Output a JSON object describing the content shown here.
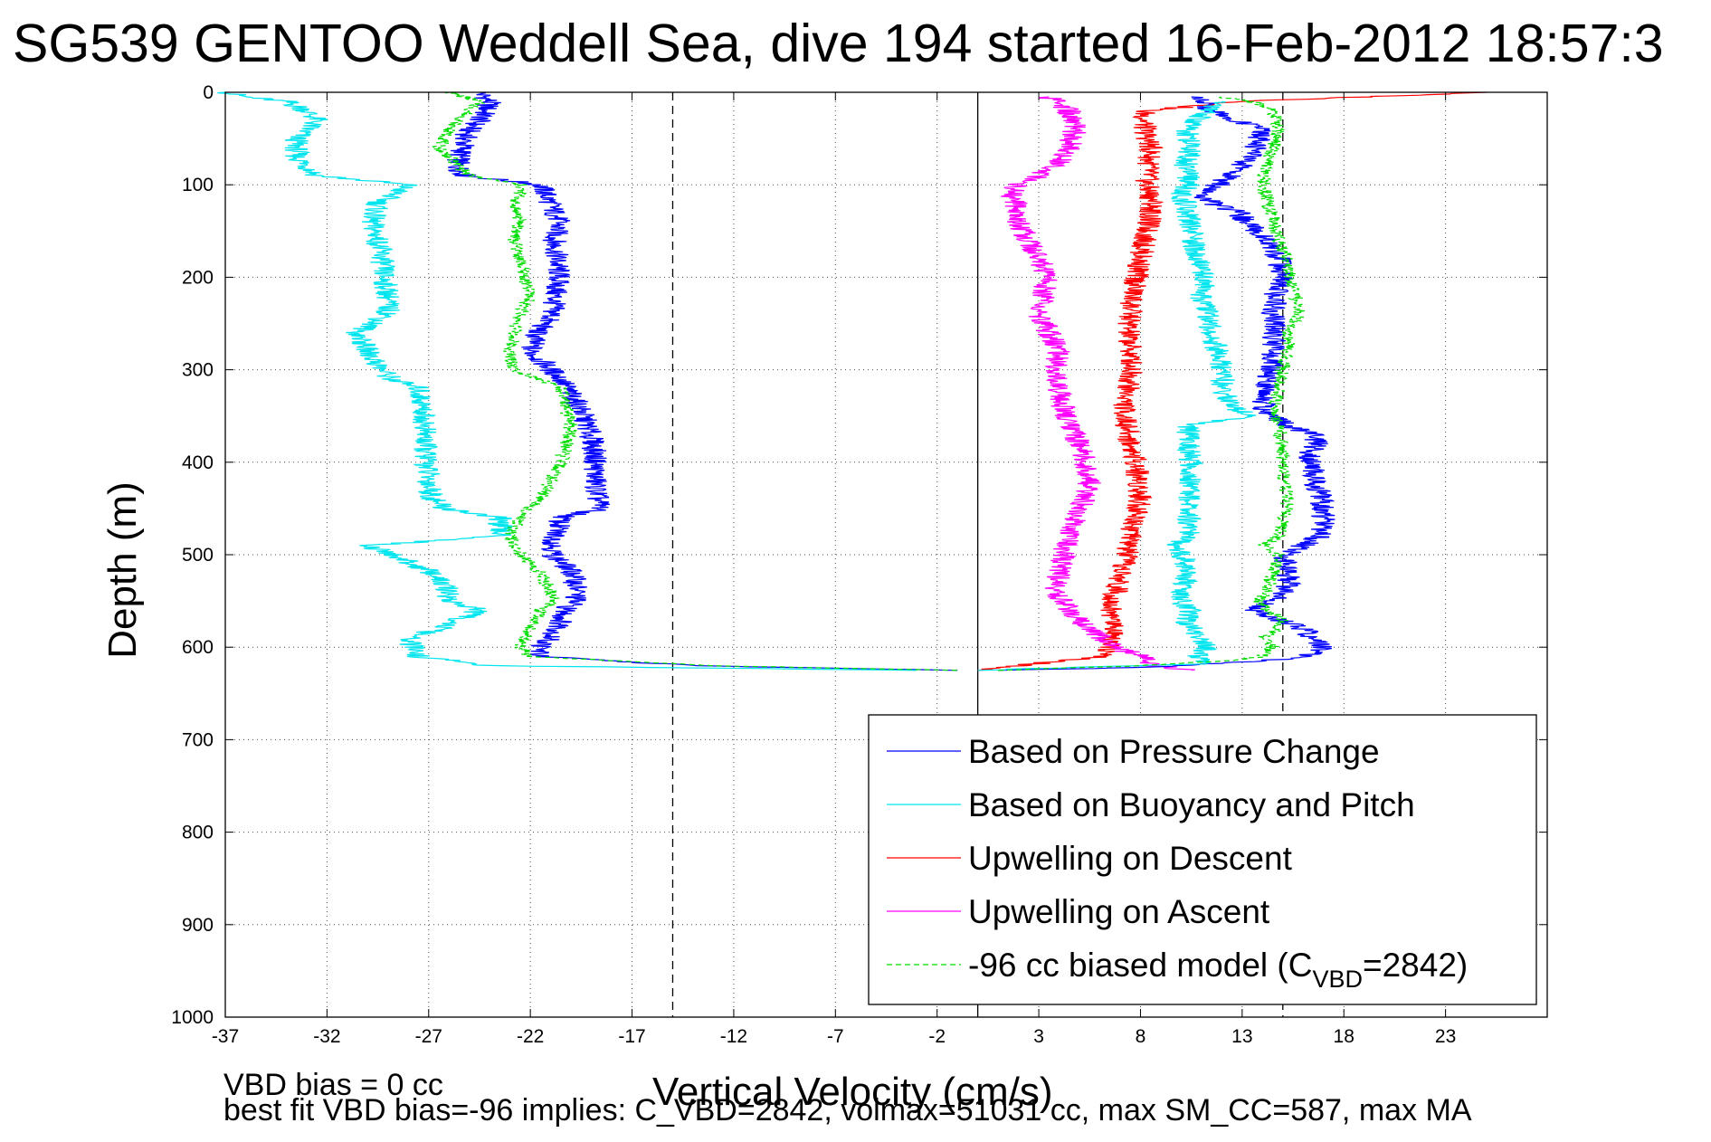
{
  "chart_data": {
    "type": "line",
    "title": "SG539 GENTOO Weddell Sea, dive 194 started 16-Feb-2012 18:57:3",
    "xlabel": "Vertical Velocity (cm/s)",
    "ylabel": "Depth (m)",
    "xlim": [
      -37,
      28
    ],
    "ylim": [
      0,
      1000
    ],
    "y_reversed": true,
    "x_ticks": [
      -37,
      -32,
      -27,
      -22,
      -17,
      -12,
      -7,
      -2,
      3,
      8,
      13,
      18,
      23
    ],
    "y_ticks": [
      0,
      100,
      200,
      300,
      400,
      500,
      600,
      700,
      800,
      900,
      1000
    ],
    "grid": true,
    "legend_position": "bottom-right",
    "reference_lines": [
      {
        "x": -15,
        "style": "dashed",
        "color": "#000000"
      },
      {
        "x": 0,
        "style": "solid",
        "color": "#000000"
      },
      {
        "x": 15,
        "style": "dashed",
        "color": "#000000"
      }
    ],
    "series": [
      {
        "name": "Based on Pressure Change",
        "color": "#0000ff",
        "dash": "solid",
        "y": [
          0,
          10,
          20,
          30,
          40,
          50,
          60,
          70,
          80,
          90,
          100,
          120,
          140,
          160,
          180,
          200,
          220,
          240,
          260,
          280,
          300,
          310,
          320,
          340,
          360,
          380,
          400,
          420,
          440,
          450,
          460,
          480,
          500,
          520,
          540,
          550,
          560,
          580,
          600,
          610,
          620,
          625
        ],
        "x": [
          -24.5,
          -24.0,
          -24.2,
          -24.5,
          -25.0,
          -25.2,
          -25.3,
          -25.5,
          -25.6,
          -25.2,
          -21.5,
          -21.0,
          -20.6,
          -20.8,
          -20.7,
          -20.6,
          -20.8,
          -20.9,
          -21.7,
          -22.0,
          -21.0,
          -20.5,
          -20.2,
          -19.6,
          -19.2,
          -18.9,
          -18.8,
          -18.8,
          -18.7,
          -18.5,
          -20.5,
          -20.8,
          -20.9,
          -19.9,
          -19.7,
          -19.8,
          -20.3,
          -20.6,
          -21.5,
          -21.6,
          -14.0,
          -1.0
        ]
      },
      {
        "name": "Based on Buoyancy and Pitch",
        "color": "#00e5ee",
        "dash": "solid",
        "y": [
          0,
          5,
          10,
          20,
          30,
          40,
          50,
          60,
          70,
          80,
          90,
          100,
          120,
          140,
          160,
          180,
          200,
          220,
          240,
          260,
          280,
          300,
          310,
          320,
          340,
          360,
          380,
          400,
          420,
          440,
          450,
          460,
          480,
          490,
          500,
          520,
          540,
          550,
          560,
          580,
          590,
          600,
          610,
          620,
          625
        ],
        "x": [
          -37.0,
          -36.0,
          -34.0,
          -33.0,
          -32.5,
          -33.0,
          -33.5,
          -33.5,
          -33.5,
          -33.0,
          -32.5,
          -28.0,
          -29.5,
          -29.8,
          -29.5,
          -29.3,
          -29.2,
          -29.0,
          -29.0,
          -30.5,
          -30.0,
          -29.3,
          -28.8,
          -27.5,
          -27.3,
          -27.2,
          -27.2,
          -27.1,
          -27.0,
          -26.8,
          -26.2,
          -23.5,
          -23.5,
          -30.0,
          -28.8,
          -26.8,
          -26.0,
          -26.0,
          -24.5,
          -26.5,
          -28.0,
          -27.8,
          -27.5,
          -24.0,
          -3.0
        ]
      },
      {
        "name": "Upwelling on Descent",
        "color": "#ff0000",
        "dash": "solid",
        "y": [
          0,
          10,
          20,
          40,
          60,
          80,
          100,
          120,
          140,
          160,
          180,
          200,
          220,
          240,
          260,
          280,
          300,
          320,
          340,
          360,
          380,
          400,
          420,
          440,
          460,
          480,
          500,
          520,
          540,
          560,
          580,
          600,
          610,
          620,
          625
        ],
        "x": [
          25.0,
          13.0,
          8.2,
          8.2,
          8.5,
          8.4,
          8.3,
          8.6,
          8.4,
          8.2,
          8.0,
          7.8,
          7.6,
          7.5,
          7.4,
          7.5,
          7.6,
          7.4,
          7.2,
          7.3,
          7.5,
          7.8,
          7.9,
          8.0,
          7.8,
          7.5,
          7.3,
          7.0,
          6.8,
          6.5,
          6.8,
          6.6,
          6.0,
          2.0,
          0.0
        ]
      },
      {
        "name": "Upwelling on Ascent",
        "color": "#ff00ff",
        "dash": "solid",
        "y": [
          625,
          620,
          610,
          600,
          580,
          560,
          540,
          520,
          500,
          480,
          460,
          440,
          420,
          400,
          380,
          360,
          340,
          320,
          300,
          280,
          260,
          240,
          220,
          200,
          180,
          160,
          140,
          120,
          110,
          100,
          90,
          80,
          60,
          40,
          20,
          10,
          5
        ],
        "x": [
          10.5,
          8.8,
          8.0,
          6.8,
          5.5,
          4.5,
          3.8,
          4.0,
          4.2,
          4.5,
          4.8,
          5.2,
          5.5,
          5.3,
          5.0,
          4.5,
          4.2,
          4.0,
          3.8,
          4.0,
          3.5,
          3.0,
          3.2,
          3.5,
          3.0,
          2.5,
          2.0,
          1.8,
          1.6,
          2.0,
          3.0,
          3.8,
          4.5,
          4.8,
          4.5,
          4.0,
          3.5
        ]
      },
      {
        "name": "Based on Pressure Change",
        "legend": false,
        "color": "#0000ff",
        "dash": "solid",
        "y": [
          625,
          622,
          618,
          615,
          610,
          600,
          590,
          580,
          560,
          550,
          540,
          520,
          500,
          480,
          460,
          440,
          420,
          400,
          390,
          380,
          370,
          360,
          350,
          340,
          320,
          300,
          280,
          260,
          240,
          220,
          200,
          180,
          160,
          140,
          130,
          120,
          110,
          100,
          90,
          80,
          60,
          40,
          20,
          10,
          5
        ],
        "x": [
          1.0,
          8.0,
          11.0,
          14.0,
          16.0,
          17.0,
          16.5,
          16.0,
          13.5,
          14.5,
          15.2,
          15.3,
          15.1,
          16.8,
          17.0,
          16.9,
          16.6,
          16.5,
          16.2,
          16.8,
          16.4,
          15.2,
          14.5,
          14.0,
          14.2,
          14.4,
          14.5,
          14.6,
          14.5,
          14.6,
          15.0,
          14.8,
          14.2,
          13.2,
          12.8,
          11.5,
          11.0,
          11.8,
          12.5,
          13.0,
          13.6,
          14.0,
          11.5,
          11.0,
          10.5
        ]
      },
      {
        "name": "Based on Buoyancy and Pitch",
        "legend": false,
        "color": "#00e5ee",
        "dash": "solid",
        "y": [
          625,
          618,
          610,
          600,
          590,
          580,
          570,
          560,
          550,
          520,
          500,
          490,
          480,
          460,
          440,
          420,
          400,
          380,
          360,
          350,
          340,
          320,
          300,
          280,
          260,
          240,
          220,
          200,
          180,
          160,
          140,
          120,
          110,
          100,
          80,
          60,
          40,
          20,
          10
        ],
        "x": [
          0.0,
          11.0,
          10.8,
          11.2,
          10.8,
          10.6,
          10.2,
          10.5,
          10.0,
          10.3,
          10.1,
          9.8,
          10.3,
          10.4,
          10.4,
          10.5,
          10.5,
          10.3,
          10.4,
          13.5,
          12.5,
          12.0,
          12.1,
          11.8,
          11.5,
          11.3,
          11.0,
          11.2,
          10.8,
          10.6,
          10.4,
          10.2,
          10.0,
          10.4,
          10.2,
          10.5,
          10.3,
          11.2,
          12.0
        ]
      },
      {
        "name": "-96 cc biased model (CVBD=2842)",
        "color": "#00dd00",
        "dash": "dashed",
        "y": [
          0,
          10,
          20,
          30,
          40,
          50,
          60,
          70,
          80,
          90,
          100,
          110,
          120,
          140,
          160,
          180,
          200,
          220,
          240,
          260,
          280,
          300,
          310,
          320,
          340,
          360,
          380,
          400,
          420,
          440,
          450,
          460,
          480,
          500,
          520,
          540,
          550,
          560,
          580,
          600,
          610,
          620,
          625
        ],
        "x": [
          -26.0,
          -24.5,
          -25.0,
          -25.5,
          -26.0,
          -26.2,
          -26.5,
          -26.0,
          -25.5,
          -25.0,
          -22.5,
          -22.5,
          -22.8,
          -22.5,
          -22.8,
          -22.5,
          -22.3,
          -22.0,
          -22.5,
          -22.8,
          -23.0,
          -22.8,
          -21.5,
          -20.5,
          -20.3,
          -20.0,
          -20.2,
          -20.5,
          -21.0,
          -21.5,
          -22.0,
          -22.5,
          -23.0,
          -22.5,
          -21.5,
          -21.0,
          -20.8,
          -21.5,
          -22.0,
          -22.5,
          -22.0,
          -13.0,
          -1.0
        ]
      },
      {
        "name": "-96 cc biased model (CVBD=2842)",
        "legend": false,
        "color": "#00dd00",
        "dash": "dashed",
        "y": [
          625,
          620,
          615,
          610,
          600,
          590,
          580,
          570,
          560,
          550,
          540,
          520,
          500,
          490,
          480,
          460,
          440,
          420,
          400,
          380,
          360,
          340,
          320,
          300,
          280,
          260,
          240,
          220,
          200,
          180,
          160,
          140,
          120,
          100,
          80,
          60,
          40,
          20,
          10,
          5
        ],
        "x": [
          1.0,
          8.0,
          12.0,
          14.0,
          14.5,
          14.0,
          14.8,
          15.0,
          14.2,
          13.8,
          14.2,
          14.5,
          14.8,
          14.0,
          14.8,
          15.1,
          15.2,
          15.1,
          15.0,
          14.9,
          14.8,
          14.6,
          14.8,
          15.0,
          15.2,
          15.3,
          15.8,
          15.6,
          15.4,
          15.2,
          14.8,
          14.5,
          14.3,
          14.0,
          14.2,
          14.5,
          14.8,
          14.5,
          13.5,
          12.0
        ]
      }
    ]
  },
  "legend": {
    "entries": [
      {
        "label": "Based on Pressure Change",
        "color": "#0000ff",
        "dash": "solid"
      },
      {
        "label": "Based on Buoyancy and Pitch",
        "color": "#00e5ee",
        "dash": "solid"
      },
      {
        "label": "Upwelling on Descent",
        "color": "#ff0000",
        "dash": "solid"
      },
      {
        "label": "Upwelling on Ascent",
        "color": "#ff00ff",
        "dash": "solid"
      },
      {
        "label_main": "-96 cc biased model (C",
        "label_sub": "VBD",
        "label_tail": "=2842)",
        "color": "#00dd00",
        "dash": "dashed"
      }
    ]
  },
  "notes": {
    "line1": "VBD bias = 0 cc",
    "line2": "best fit VBD bias=-96 implies: C_VBD=2842, volmax=51031 cc, max SM_CC=587, max MA"
  }
}
